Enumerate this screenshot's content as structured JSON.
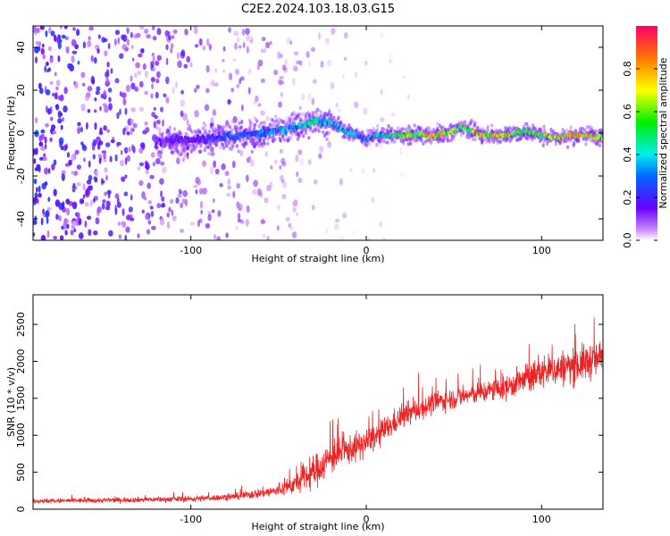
{
  "title": "C2E2.2024.103.18.03.G15",
  "chart_data": [
    {
      "type": "heatmap",
      "xlabel": "Height of straight line (km)",
      "ylabel": "Frequency (Hz)",
      "xlim": [
        -190,
        135
      ],
      "ylim": [
        -50,
        50
      ],
      "x_ticks": [
        -100,
        0,
        100
      ],
      "x_tick_labels": [
        "-100",
        "0",
        "100"
      ],
      "y_ticks": [
        -40,
        -20,
        0,
        20,
        40
      ],
      "y_tick_labels": [
        "-40",
        "-20",
        "0",
        "20",
        "40"
      ],
      "colorbar": {
        "label": "Normalized spectral amplitude",
        "range": [
          0,
          1
        ],
        "ticks": [
          0.0,
          0.2,
          0.4,
          0.6,
          0.8
        ],
        "tick_labels": [
          "0.0",
          "0.2",
          "0.4",
          "0.6",
          "0.8"
        ]
      },
      "ridge": {
        "x": [
          -120,
          -100,
          -80,
          -60,
          -45,
          -35,
          -28,
          -20,
          -12,
          -5,
          0,
          5,
          12,
          20,
          30,
          40,
          50,
          55,
          62,
          70,
          80,
          92,
          100,
          110,
          120,
          130,
          135
        ],
        "y": [
          -4,
          -3,
          -2,
          0,
          2,
          4,
          6,
          5,
          1,
          -1,
          -3,
          -1,
          -1,
          -1,
          -1,
          -1,
          1,
          3,
          0,
          -1,
          -1,
          1,
          -1,
          -2,
          -1,
          -1,
          -2
        ],
        "amplitude": [
          0.15,
          0.2,
          0.3,
          0.35,
          0.4,
          0.5,
          0.55,
          0.5,
          0.45,
          0.4,
          0.4,
          0.45,
          0.55,
          0.7,
          0.8,
          0.85,
          0.75,
          0.6,
          0.9,
          0.85,
          0.8,
          0.6,
          0.75,
          0.8,
          0.85,
          0.9,
          0.8
        ]
      },
      "noise": {
        "x_range": [
          -190,
          -15
        ],
        "amplitude": 0.2
      }
    },
    {
      "type": "line",
      "xlabel": "Height of straight line (km)",
      "ylabel": "SNR (10 * v/v)",
      "xlim": [
        -190,
        135
      ],
      "ylim": [
        0,
        2900
      ],
      "x_ticks": [
        -100,
        0,
        100
      ],
      "x_tick_labels": [
        "-100",
        "0",
        "100"
      ],
      "y_ticks": [
        0,
        500,
        1000,
        1500,
        2000,
        2500
      ],
      "y_tick_labels": [
        "0",
        "500",
        "1000",
        "1500",
        "2000",
        "2500"
      ],
      "series": [
        {
          "color": "#ee2222",
          "x": [
            -190,
            -150,
            -100,
            -75,
            -50,
            -40,
            -30,
            -20,
            -10,
            0,
            10,
            20,
            40,
            60,
            80,
            100,
            120,
            135
          ],
          "values": [
            110,
            120,
            140,
            170,
            250,
            350,
            500,
            700,
            800,
            900,
            1050,
            1250,
            1450,
            1550,
            1650,
            1850,
            1950,
            2050
          ],
          "spread": [
            60,
            60,
            70,
            80,
            150,
            250,
            400,
            400,
            350,
            350,
            300,
            300,
            250,
            250,
            300,
            400,
            450,
            450
          ]
        }
      ]
    }
  ]
}
